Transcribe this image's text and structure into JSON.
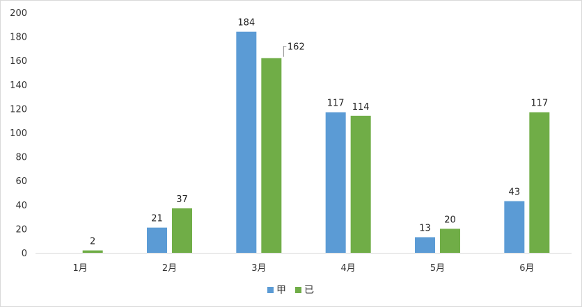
{
  "chart_data": {
    "type": "bar",
    "categories": [
      "1月",
      "2月",
      "3月",
      "4月",
      "5月",
      "6月"
    ],
    "series": [
      {
        "name": "甲",
        "color": "#5b9bd5",
        "values": [
          0,
          21,
          184,
          117,
          13,
          43
        ]
      },
      {
        "name": "已",
        "color": "#70ad47",
        "values": [
          2,
          37,
          162,
          114,
          20,
          117
        ]
      }
    ],
    "ylim": [
      0,
      200
    ],
    "yticks": [
      0,
      20,
      40,
      60,
      80,
      100,
      120,
      140,
      160,
      180,
      200
    ],
    "data_labels": [
      [
        "",
        "21",
        "184",
        "117",
        "13",
        "43"
      ],
      [
        "2",
        "37",
        "162",
        "114",
        "20",
        "117"
      ]
    ],
    "grid": false,
    "legend_position": "bottom"
  }
}
